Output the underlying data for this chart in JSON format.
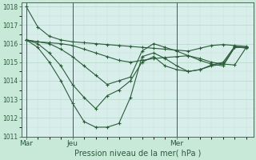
{
  "title": "Pression niveau de la mer( hPa )",
  "bg_color": "#c8e8d8",
  "plot_bg_color": "#d8eeea",
  "grid_color_major": "#b8d8c8",
  "grid_color_minor": "#c8e0d4",
  "line_color": "#2a5c3a",
  "marker": "+",
  "markersize": 3,
  "linewidth": 0.8,
  "ylim": [
    1011.0,
    1018.2
  ],
  "yticks": [
    1011,
    1012,
    1013,
    1014,
    1015,
    1016,
    1017,
    1018
  ],
  "xtick_labels": [
    "Mar",
    "Jeu",
    "Mer"
  ],
  "vline_color": "#336644",
  "series": [
    {
      "x": [
        0,
        0.5,
        1.0,
        1.5,
        2.0,
        2.5,
        3.0,
        3.5,
        4.0,
        4.5,
        5.0,
        5.5,
        6.0,
        6.5,
        7.0,
        7.5,
        8.0,
        8.5,
        9.0,
        9.5
      ],
      "y": [
        1018.0,
        1016.9,
        1016.4,
        1016.2,
        1016.1,
        1016.05,
        1016.0,
        1015.95,
        1015.9,
        1015.85,
        1015.8,
        1015.75,
        1015.7,
        1015.65,
        1015.6,
        1015.75,
        1015.9,
        1015.95,
        1015.9,
        1015.85
      ]
    },
    {
      "x": [
        0,
        0.5,
        1.0,
        1.5,
        2.0,
        2.5,
        3.0,
        3.5,
        4.0,
        4.5,
        5.0,
        5.5,
        6.0,
        6.5,
        7.0,
        7.5,
        8.0,
        8.5,
        9.0,
        9.5
      ],
      "y": [
        1016.2,
        1016.1,
        1016.05,
        1016.0,
        1015.9,
        1015.7,
        1015.5,
        1015.3,
        1015.1,
        1015.0,
        1015.1,
        1015.2,
        1015.25,
        1015.3,
        1015.35,
        1015.2,
        1015.0,
        1014.9,
        1014.85,
        1015.8
      ]
    },
    {
      "x": [
        0,
        0.5,
        1.0,
        1.5,
        2.0,
        2.5,
        3.0,
        3.5,
        4.0,
        4.5,
        5.0,
        5.5,
        6.0,
        6.5,
        7.0,
        7.5,
        8.0,
        8.5,
        9.0,
        9.5
      ],
      "y": [
        1016.2,
        1016.1,
        1016.0,
        1015.7,
        1015.3,
        1014.8,
        1014.3,
        1013.8,
        1014.0,
        1014.2,
        1015.6,
        1016.0,
        1015.8,
        1015.6,
        1015.35,
        1015.1,
        1014.9,
        1014.8,
        1015.8,
        1015.8
      ]
    },
    {
      "x": [
        0,
        0.5,
        1.0,
        1.5,
        2.0,
        2.5,
        3.0,
        3.5,
        4.0,
        4.5,
        5.0,
        5.5,
        6.0,
        6.5,
        7.0,
        7.5,
        8.0,
        8.5,
        9.0,
        9.5
      ],
      "y": [
        1016.2,
        1016.0,
        1015.5,
        1014.8,
        1013.8,
        1013.1,
        1012.5,
        1013.2,
        1013.5,
        1014.0,
        1015.0,
        1015.3,
        1014.8,
        1014.6,
        1014.5,
        1014.6,
        1014.8,
        1014.9,
        1015.8,
        1015.8
      ]
    },
    {
      "x": [
        0,
        0.5,
        1.0,
        1.5,
        2.0,
        2.5,
        3.0,
        3.5,
        4.0,
        4.5,
        5.0,
        5.5,
        6.0,
        6.5,
        7.0,
        7.5,
        8.0,
        8.5,
        9.0,
        9.5
      ],
      "y": [
        1016.2,
        1015.8,
        1015.0,
        1014.0,
        1012.8,
        1011.8,
        1011.5,
        1011.5,
        1011.7,
        1013.1,
        1015.3,
        1015.5,
        1015.2,
        1014.8,
        1014.5,
        1014.6,
        1014.85,
        1015.0,
        1015.85,
        1015.75
      ]
    }
  ],
  "xlim": [
    -0.2,
    9.8
  ],
  "vlines_x": [
    0,
    2.0,
    6.5
  ],
  "xtick_x": [
    0,
    2.0,
    6.5
  ]
}
